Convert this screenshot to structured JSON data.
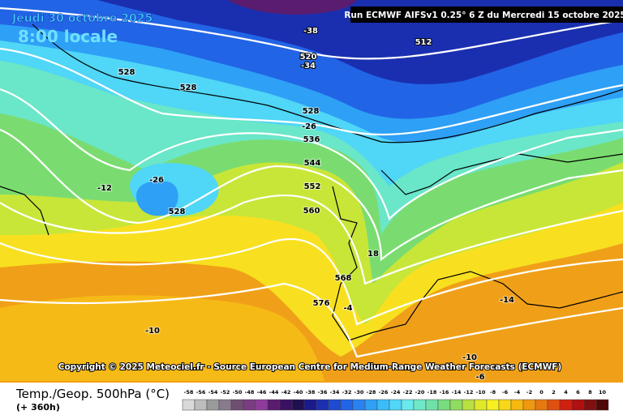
{
  "header": {
    "date": "Jeudi 30 octobre 2025",
    "time": "8:00 locale",
    "run": "Run ECMWF AIFSv1 0.25° 6 Z du Mercredi 15 octobre 2025"
  },
  "map": {
    "contour_labels": [
      "-38",
      "520",
      "-34",
      "512",
      "528",
      "528",
      "528",
      "-26",
      "536",
      "544",
      "552",
      "560",
      "-26",
      "528",
      "-12",
      "18",
      "568",
      "576",
      "-4",
      "-14",
      "-10",
      "-10",
      "-6"
    ],
    "copyright": "Copyright © 2025 Meteociel.fr - Source European Centre for Medium-Range Weather Forecasts (ECMWF)"
  },
  "footer": {
    "parameter": "Temp./Geop. 500hPa (°C)",
    "lead_time": "(+ 360h)"
  },
  "legend": {
    "ticks": [
      -58,
      -56,
      -54,
      -52,
      -50,
      -48,
      -46,
      -44,
      -42,
      -40,
      -38,
      -36,
      -34,
      -32,
      -30,
      -28,
      -26,
      -24,
      -22,
      -20,
      -18,
      -16,
      -14,
      -12,
      -10,
      -8,
      -6,
      -4,
      -2,
      0,
      2,
      4,
      6,
      8,
      10
    ],
    "colors": [
      "#d9d9d9",
      "#bdbdbd",
      "#9a9a9a",
      "#8a7a8e",
      "#6e4f72",
      "#7a3c82",
      "#8e3c9c",
      "#5a1c6e",
      "#3a1060",
      "#20104f",
      "#1a1a8a",
      "#1c2fb0",
      "#1f4bd0",
      "#2264e6",
      "#2a82f0",
      "#2ea0f6",
      "#3abcf8",
      "#50d6f8",
      "#6ae8ee",
      "#6ee8c8",
      "#70e0a8",
      "#78dc80",
      "#90dc60",
      "#b8e040",
      "#e0e82a",
      "#f8f020",
      "#f8d818",
      "#f8b810",
      "#f09810",
      "#e87810",
      "#e05010",
      "#d02010",
      "#b01010",
      "#801010",
      "#500808"
    ]
  }
}
